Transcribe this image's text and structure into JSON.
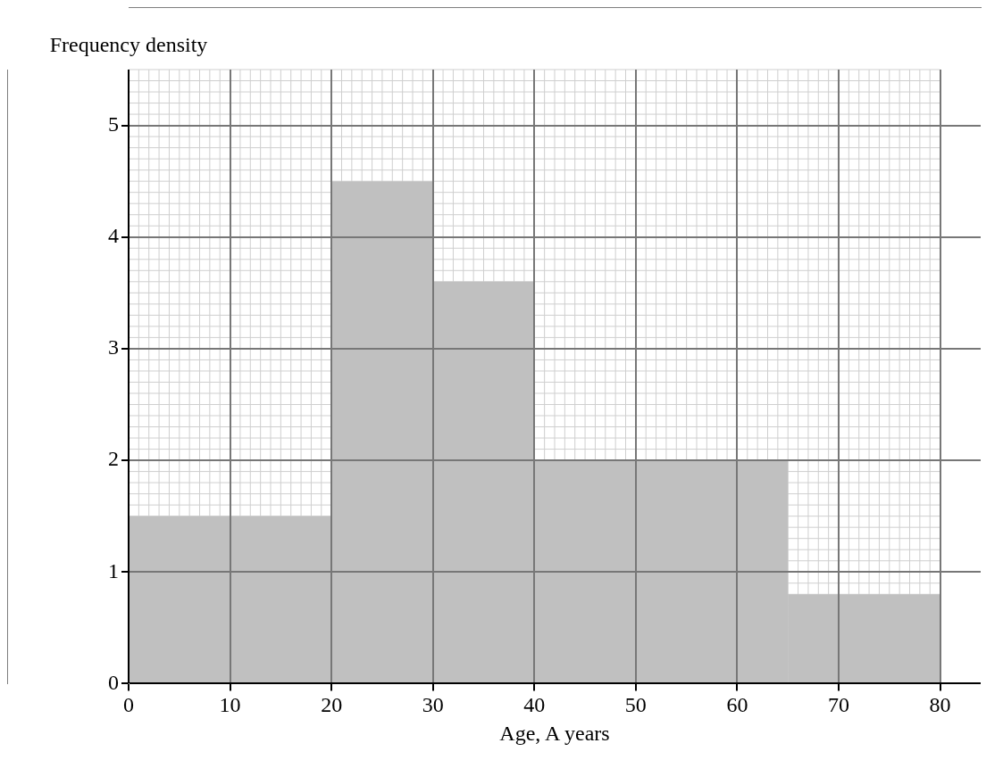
{
  "chart_data": {
    "type": "histogram",
    "xlabel": "Age, A years",
    "ylabel": "Frequency density",
    "bins": [
      0,
      20,
      30,
      40,
      65,
      80
    ],
    "values": [
      1.5,
      4.5,
      3.6,
      2,
      0.8
    ],
    "color": "#c0c0c0",
    "xlim": [
      0,
      84
    ],
    "xticks": [
      0,
      10,
      20,
      30,
      40,
      50,
      60,
      70,
      80
    ],
    "ylim": [
      0,
      5.5
    ],
    "yticks": [
      0,
      1,
      2,
      3,
      4,
      5
    ],
    "grid": true
  }
}
